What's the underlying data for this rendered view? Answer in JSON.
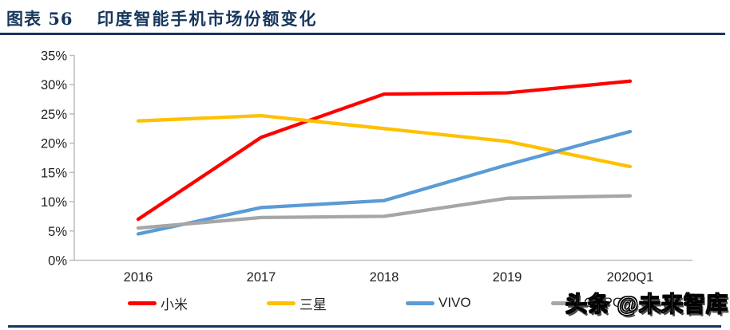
{
  "header": {
    "label": "图表 56",
    "title": "印度智能手机市场份额变化"
  },
  "watermark": {
    "text": "头条 @未来智库"
  },
  "chart_data": {
    "type": "line",
    "title": "印度智能手机市场份额变化",
    "categories": [
      "2016",
      "2017",
      "2018",
      "2019",
      "2020Q1"
    ],
    "series": [
      {
        "name": "小米",
        "color": "#FF0000",
        "values": [
          7.0,
          21.0,
          28.4,
          28.6,
          30.6
        ]
      },
      {
        "name": "三星",
        "color": "#FFC000",
        "values": [
          23.8,
          24.7,
          22.5,
          20.3,
          16.0
        ]
      },
      {
        "name": "VIVO",
        "color": "#5B9BD5",
        "values": [
          4.5,
          9.0,
          10.2,
          16.3,
          22.0
        ]
      },
      {
        "name": "OPPO",
        "color": "#A6A6A6",
        "values": [
          5.5,
          7.3,
          7.5,
          10.6,
          11.0
        ]
      }
    ],
    "xlabel": "",
    "ylabel": "",
    "ylim": [
      0,
      35
    ],
    "ytick_step": 5,
    "ytick_labels": [
      "0%",
      "5%",
      "10%",
      "15%",
      "20%",
      "25%",
      "30%",
      "35%"
    ],
    "grid": "off",
    "legend_position": "bottom",
    "axis_color": "#BFBFBF",
    "tick_label_color": "#1f1f1f"
  }
}
